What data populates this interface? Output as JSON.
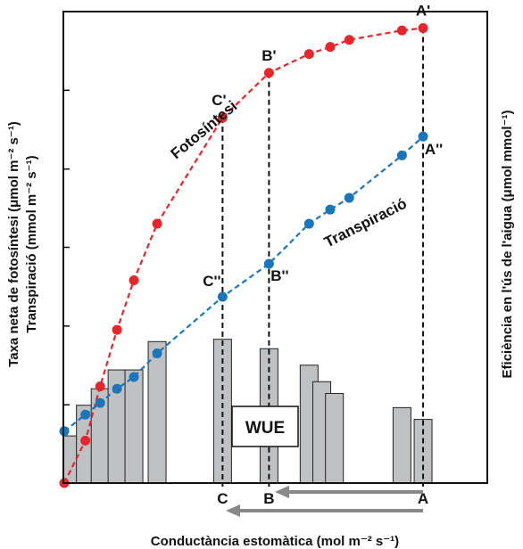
{
  "chart_data": {
    "type": "line",
    "xlabel": "Conductància estomàtica (mol m⁻² s⁻¹)",
    "ylabel_left_1": "Taxa neta de fotosíntesi (μmol m⁻² s⁻¹)",
    "ylabel_left_2": "Transpiració (mmol m⁻² s⁻¹)",
    "ylabel_right": "Eficiència en l'ús de l'aigua (μmol mmol⁻¹)",
    "xlim": [
      0,
      100
    ],
    "ylim": [
      0,
      100
    ],
    "yticks": [
      16.6,
      33.3,
      50,
      66.6,
      83.3
    ],
    "series": [
      {
        "name": "Fotosíntesi",
        "color": "#e8252b",
        "x": [
          0,
          5,
          8.5,
          12.5,
          16.5,
          22,
          37.5,
          48.5,
          58,
          63,
          67.5,
          80,
          85
        ],
        "y": [
          0,
          9,
          20.5,
          32.5,
          43,
          55,
          77.5,
          87,
          91,
          92.5,
          94,
          96,
          96.5
        ]
      },
      {
        "name": "Transpiració",
        "color": "#1a75bb",
        "x": [
          0,
          5,
          8.5,
          12.5,
          16.5,
          22,
          37.5,
          48.5,
          58,
          63,
          67.5,
          80,
          85
        ],
        "y": [
          11,
          14.5,
          17,
          20,
          22.5,
          27.5,
          39.5,
          46.5,
          55,
          58,
          60.5,
          69.5,
          73.5
        ]
      }
    ],
    "bars": {
      "name": "WUE",
      "color": "#c0c1c3",
      "x": [
        2,
        5,
        8.5,
        12.5,
        16.5,
        22,
        37.5,
        48.5,
        58,
        61,
        64,
        80,
        85
      ],
      "values": [
        10,
        16.5,
        20,
        24,
        24,
        30,
        30.5,
        28.5,
        25,
        21.5,
        19,
        16,
        13.5
      ]
    },
    "points": [
      {
        "label": "A'",
        "series": 0,
        "index": 12
      },
      {
        "label": "B'",
        "series": 0,
        "index": 7
      },
      {
        "label": "C'",
        "series": 0,
        "index": 6
      },
      {
        "label": "A''",
        "series": 1,
        "index": 12
      },
      {
        "label": "B''",
        "series": 1,
        "index": 7
      },
      {
        "label": "C''",
        "series": 1,
        "index": 6
      }
    ],
    "x_markers": [
      {
        "label": "A",
        "x": 85
      },
      {
        "label": "B",
        "x": 48.5
      },
      {
        "label": "C",
        "x": 37.5
      }
    ],
    "series_labels": [
      "Fotosíntesi",
      "Transpiració"
    ],
    "box_label": "WUE",
    "grid": false
  }
}
